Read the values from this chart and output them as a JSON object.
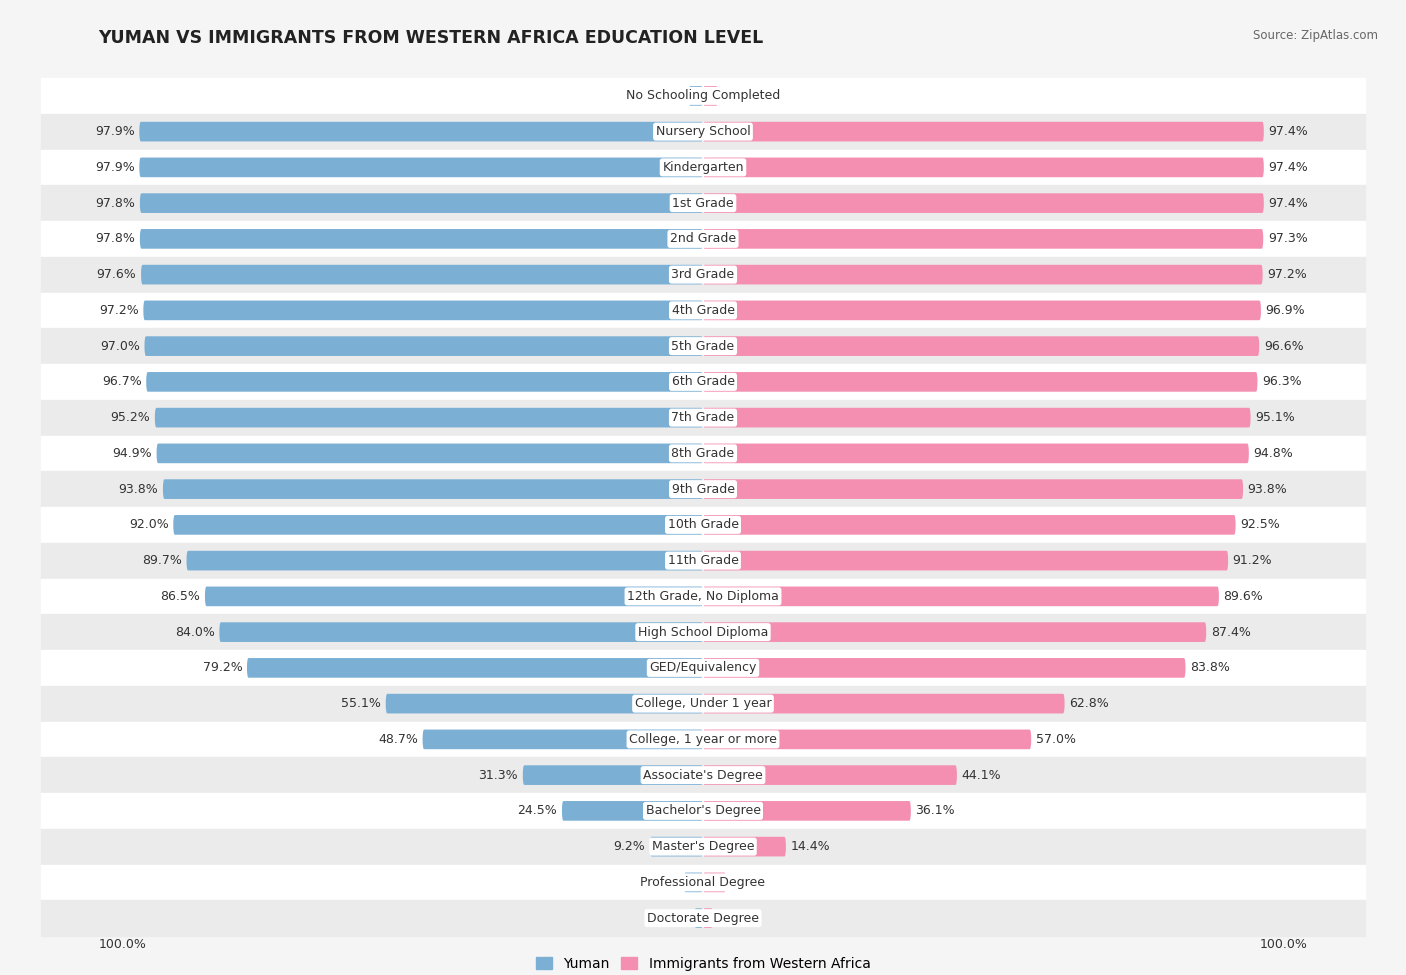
{
  "title": "YUMAN VS IMMIGRANTS FROM WESTERN AFRICA EDUCATION LEVEL",
  "source": "Source: ZipAtlas.com",
  "categories": [
    "No Schooling Completed",
    "Nursery School",
    "Kindergarten",
    "1st Grade",
    "2nd Grade",
    "3rd Grade",
    "4th Grade",
    "5th Grade",
    "6th Grade",
    "7th Grade",
    "8th Grade",
    "9th Grade",
    "10th Grade",
    "11th Grade",
    "12th Grade, No Diploma",
    "High School Diploma",
    "GED/Equivalency",
    "College, Under 1 year",
    "College, 1 year or more",
    "Associate's Degree",
    "Bachelor's Degree",
    "Master's Degree",
    "Professional Degree",
    "Doctorate Degree"
  ],
  "yuman": [
    2.5,
    97.9,
    97.9,
    97.8,
    97.8,
    97.6,
    97.2,
    97.0,
    96.7,
    95.2,
    94.9,
    93.8,
    92.0,
    89.7,
    86.5,
    84.0,
    79.2,
    55.1,
    48.7,
    31.3,
    24.5,
    9.2,
    3.3,
    1.5
  ],
  "western_africa": [
    2.6,
    97.4,
    97.4,
    97.4,
    97.3,
    97.2,
    96.9,
    96.6,
    96.3,
    95.1,
    94.8,
    93.8,
    92.5,
    91.2,
    89.6,
    87.4,
    83.8,
    62.8,
    57.0,
    44.1,
    36.1,
    14.4,
    4.0,
    1.7
  ],
  "yuman_color": "#7bafd4",
  "western_africa_color": "#f48fb1",
  "background_color": "#f5f5f5",
  "row_colors": [
    "#ffffff",
    "#ebebeb"
  ],
  "label_fontsize": 9.0,
  "title_fontsize": 12.5,
  "legend_yuman": "Yuman",
  "legend_western": "Immigrants from Western Africa"
}
